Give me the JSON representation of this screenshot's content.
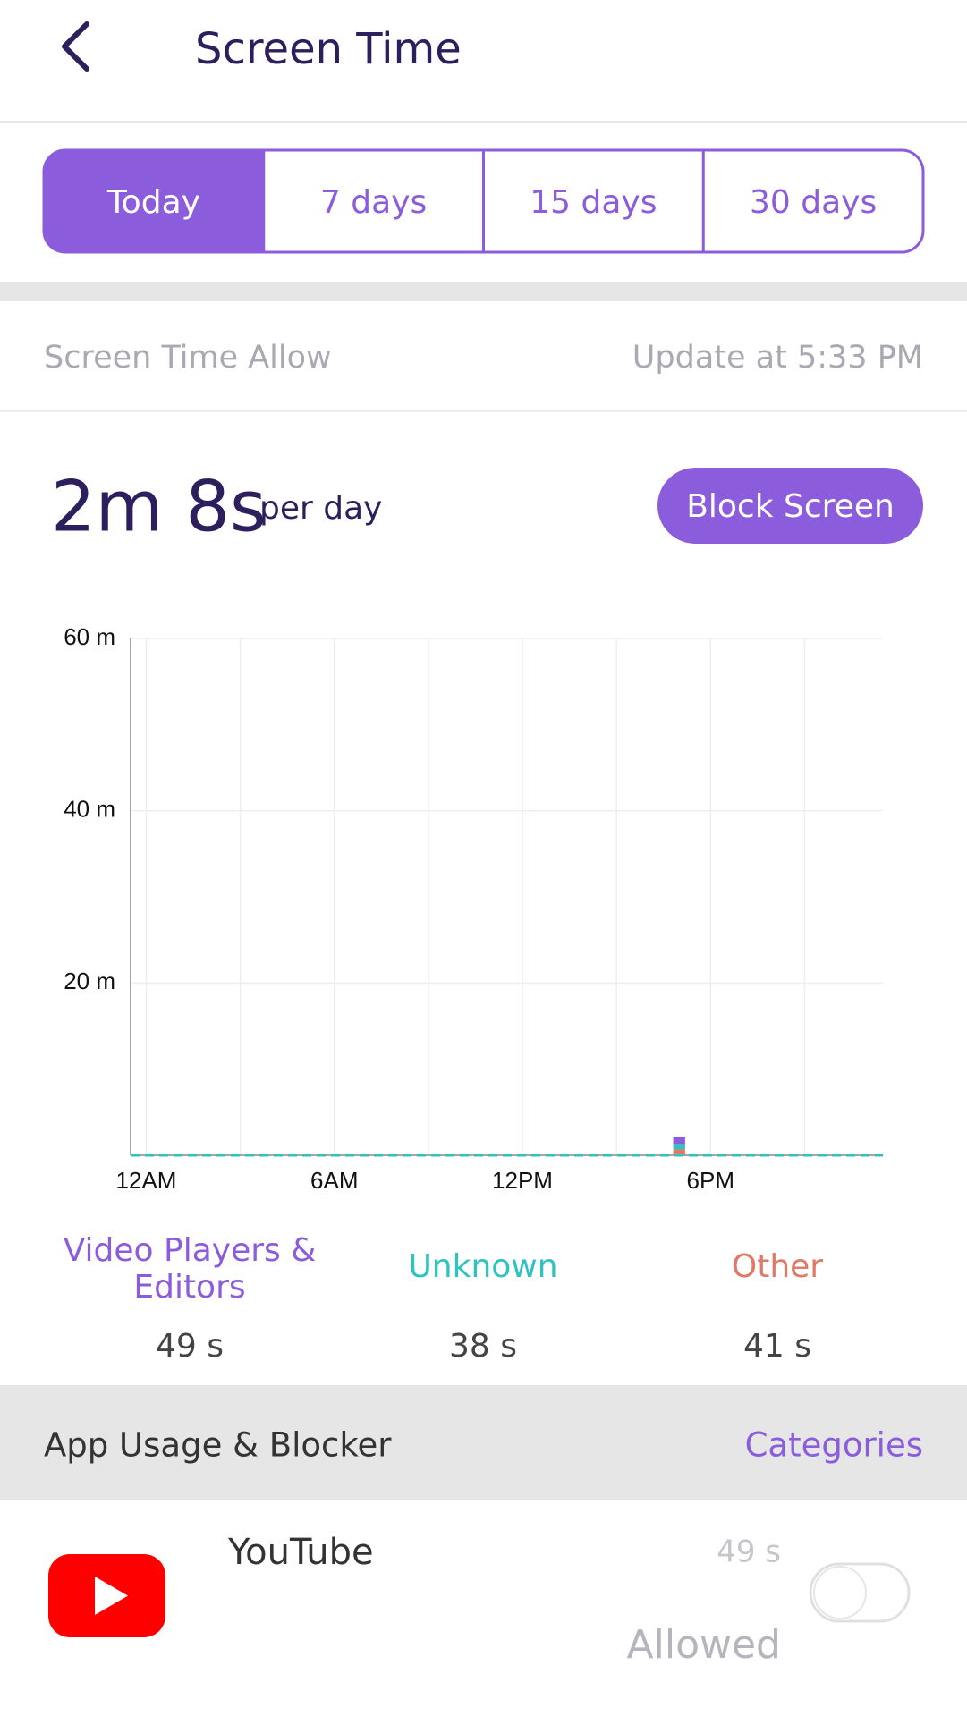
{
  "header": {
    "title": "Screen Time"
  },
  "tabs": [
    "Today",
    "7 days",
    "15 days",
    "30 days"
  ],
  "active_tab": 0,
  "info": {
    "label": "Screen Time Allow",
    "updated": "Update at 5:33 PM"
  },
  "summary": {
    "total": "2m 8s",
    "unit": "per day",
    "button": "Block Screen"
  },
  "chart_data": {
    "type": "bar",
    "stacked": true,
    "x": [
      17
    ],
    "xlim": [
      -0.5,
      23.5
    ],
    "xticks": [
      {
        "value": 0,
        "label": "12AM"
      },
      {
        "value": 6,
        "label": "6AM"
      },
      {
        "value": 12,
        "label": "12PM"
      },
      {
        "value": 18,
        "label": "6PM"
      }
    ],
    "xgrid": [
      0,
      3,
      6,
      9,
      12,
      15,
      18,
      21
    ],
    "ylim": [
      0,
      60
    ],
    "yticks": [
      {
        "value": 20,
        "label": "20 m"
      },
      {
        "value": 40,
        "label": "40 m"
      },
      {
        "value": 60,
        "label": "60 m"
      }
    ],
    "grid": true,
    "series": [
      {
        "name": "Video Players & Editors",
        "color": "#8b5cdb",
        "values": [
          0.82
        ],
        "value_labels": [
          "49 s"
        ]
      },
      {
        "name": "Unknown",
        "color": "#2fc3c0",
        "values": [
          0.63
        ],
        "value_labels": [
          "38 s"
        ]
      },
      {
        "name": "Other",
        "color": "#e07a68",
        "values": [
          0.68
        ],
        "value_labels": [
          "41 s"
        ]
      }
    ]
  },
  "section": {
    "title": "App Usage & Blocker",
    "link": "Categories"
  },
  "apps": [
    {
      "name": "YouTube",
      "time": "49 s",
      "status": "Allowed"
    }
  ]
}
